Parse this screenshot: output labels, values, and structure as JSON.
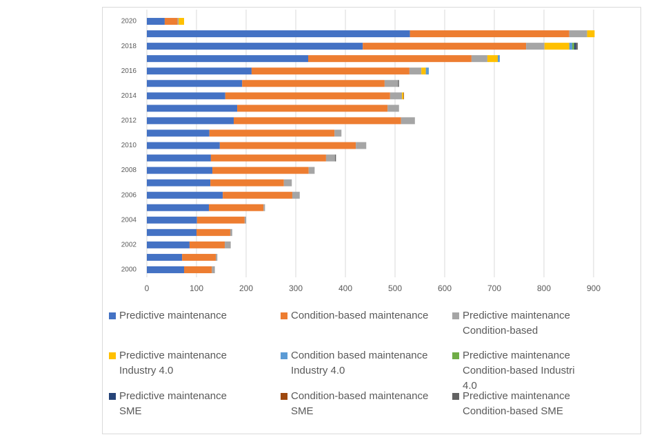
{
  "chart_data": {
    "type": "stacked-bar-horizontal",
    "categories": [
      "2000",
      null,
      "2002",
      null,
      "2004",
      null,
      "2006",
      null,
      "2008",
      null,
      "2010",
      null,
      "2012",
      null,
      "2014",
      null,
      "2016",
      null,
      "2018",
      null,
      "2020"
    ],
    "series": [
      {
        "name": "Predictive maintenance",
        "color": "#4472c4",
        "values": [
          75,
          71,
          86,
          100,
          101,
          125,
          153,
          128,
          132,
          129,
          147,
          126,
          175,
          182,
          158,
          192,
          211,
          325,
          435,
          530,
          36
        ]
      },
      {
        "name": "Condition-based maintenance",
        "color": "#ed7d31",
        "values": [
          56,
          68,
          71,
          68,
          96,
          110,
          140,
          148,
          194,
          232,
          274,
          252,
          337,
          303,
          332,
          287,
          318,
          329,
          329,
          321,
          26
        ]
      },
      {
        "name": "Predictive maintenance Condition-based",
        "color": "#a5a5a5",
        "values": [
          6,
          3,
          12,
          4,
          3,
          3,
          15,
          16,
          12,
          18,
          21,
          14,
          28,
          23,
          24,
          27,
          24,
          32,
          37,
          36,
          2
        ]
      },
      {
        "name": "Predictive maintenance Industry 4.0",
        "color": "#ffc000",
        "values": [
          0,
          0,
          0,
          0,
          0,
          0,
          0,
          0,
          0,
          0,
          0,
          0,
          0,
          0,
          3,
          0,
          9,
          21,
          50,
          15,
          11
        ]
      },
      {
        "name": "Condition based maintenance Industry 4.0",
        "color": "#5b9bd5",
        "values": [
          0,
          0,
          0,
          0,
          0,
          0,
          0,
          0,
          0,
          0,
          0,
          0,
          0,
          0,
          0,
          0,
          6,
          4,
          6,
          0,
          0
        ]
      },
      {
        "name": "Predictive maintenance Condition-based Industri 4.0",
        "color": "#70ad47",
        "values": [
          0,
          0,
          0,
          0,
          0,
          0,
          0,
          0,
          0,
          0,
          0,
          0,
          0,
          0,
          0,
          0,
          0,
          0,
          4,
          0,
          0
        ]
      },
      {
        "name": "Predictive maintenance SME",
        "color": "#264478",
        "values": [
          0,
          0,
          0,
          0,
          0,
          0,
          0,
          0,
          0,
          0,
          0,
          0,
          0,
          0,
          0,
          0,
          0,
          0,
          3,
          0,
          0
        ]
      },
      {
        "name": "Condition-based maintenance SME",
        "color": "#9e480e",
        "values": [
          0,
          0,
          0,
          0,
          0,
          0,
          0,
          0,
          0,
          0,
          0,
          0,
          0,
          0,
          1,
          0,
          0,
          0,
          0,
          0,
          0
        ]
      },
      {
        "name": "Predictive maintenance Condition-based SME",
        "color": "#636363",
        "values": [
          0,
          0,
          0,
          0,
          0,
          0,
          0,
          0,
          0,
          2,
          0,
          0,
          0,
          0,
          0,
          2,
          0,
          0,
          4,
          0,
          0
        ]
      }
    ],
    "xlim": [
      0,
      900
    ],
    "xticks": [
      0,
      100,
      200,
      300,
      400,
      500,
      600,
      700,
      800,
      900
    ],
    "grid": true
  }
}
